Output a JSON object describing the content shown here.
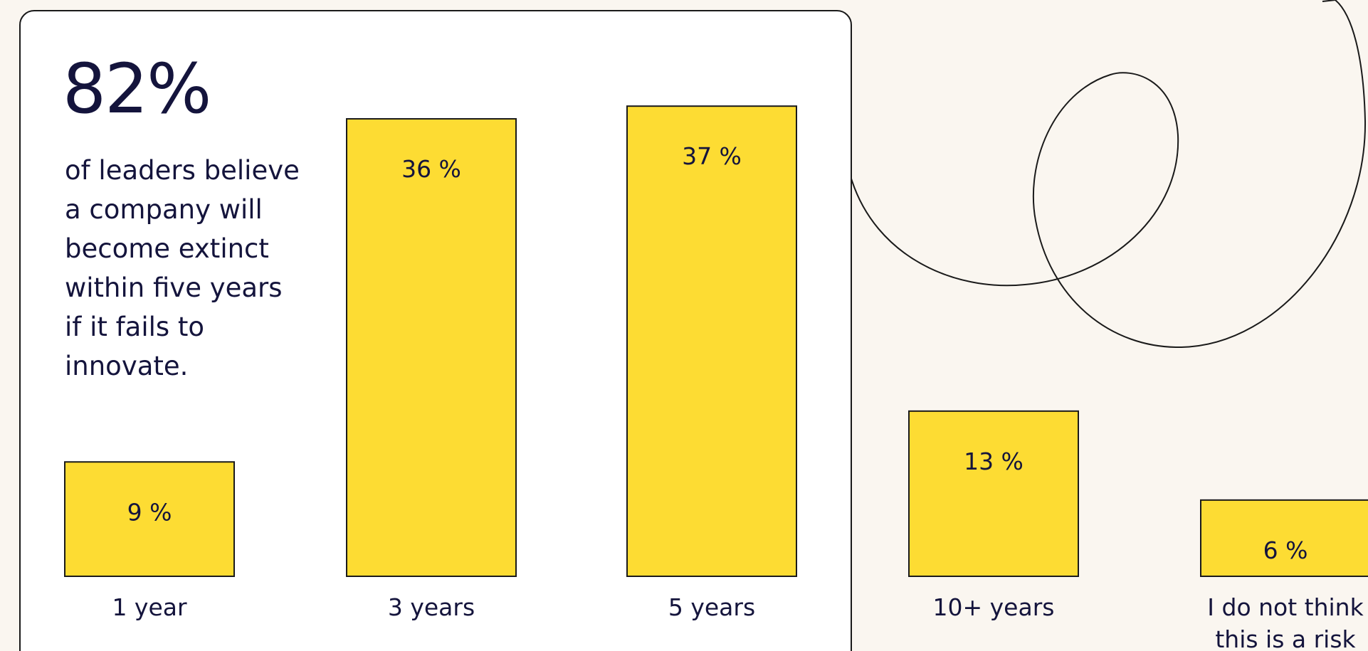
{
  "chart_data": {
    "type": "bar",
    "highlight": "82%",
    "description": "of leaders believe a company will become extinct within five years if it fails to innovate.",
    "categories": [
      "1 year",
      "3 years",
      "5 years",
      "10+ years",
      "I do not think this is a risk"
    ],
    "values": [
      9,
      36,
      37,
      13,
      6
    ],
    "value_labels": [
      "9 %",
      "36 %",
      "37 %",
      "13 %",
      "6 %"
    ],
    "color": "#fddc33"
  }
}
